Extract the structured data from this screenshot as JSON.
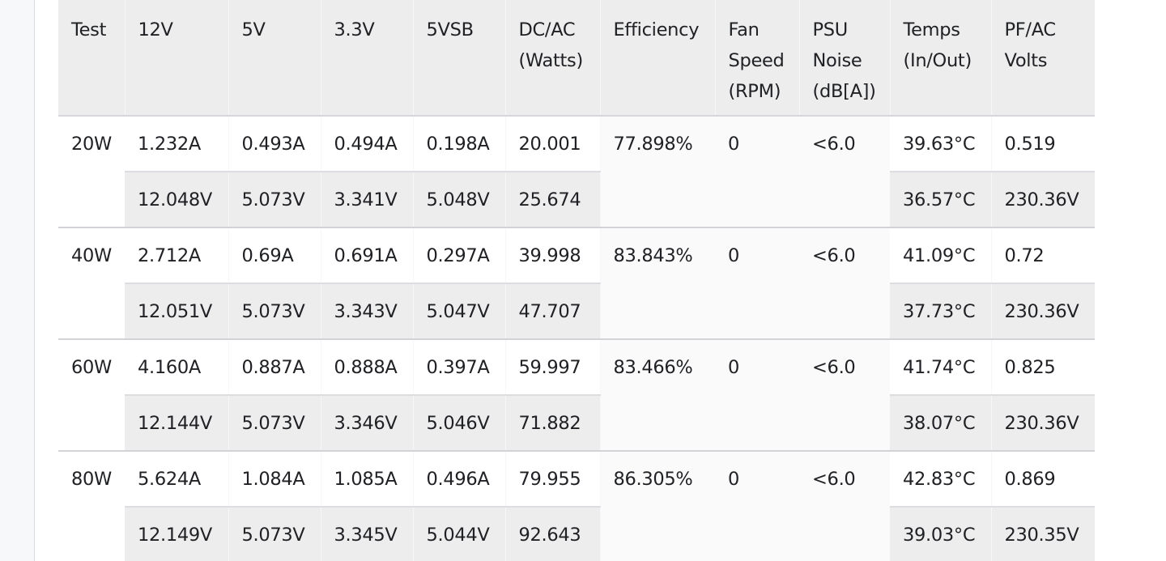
{
  "table": {
    "headers": [
      {
        "key": "test",
        "lines": [
          "Test"
        ]
      },
      {
        "key": "v12",
        "lines": [
          "12V"
        ]
      },
      {
        "key": "v5",
        "lines": [
          "5V"
        ]
      },
      {
        "key": "v33",
        "lines": [
          "3.3V"
        ]
      },
      {
        "key": "v5vsb",
        "lines": [
          "5VSB"
        ]
      },
      {
        "key": "dcac",
        "lines": [
          "DC/AC",
          "(Watts)"
        ]
      },
      {
        "key": "efficiency",
        "lines": [
          "Efficiency"
        ]
      },
      {
        "key": "fan",
        "lines": [
          "Fan",
          "Speed",
          "(RPM)"
        ]
      },
      {
        "key": "noise",
        "lines": [
          "PSU",
          "Noise",
          "(dB[A])"
        ]
      },
      {
        "key": "temps",
        "lines": [
          "Temps",
          "(In/Out)"
        ]
      },
      {
        "key": "pfac",
        "lines": [
          "PF/AC",
          "Volts"
        ]
      }
    ],
    "rows": [
      {
        "test": "20W",
        "amps": [
          "1.232A",
          "0.493A",
          "0.494A",
          "0.198A",
          "20.001"
        ],
        "volts": [
          "12.048V",
          "5.073V",
          "3.341V",
          "5.048V",
          "25.674"
        ],
        "efficiency": "77.898%",
        "fan": "0",
        "noise": "<6.0",
        "temp_in": "39.63°C",
        "temp_out": "36.57°C",
        "pf": "0.519",
        "ac_volts": "230.36V"
      },
      {
        "test": "40W",
        "amps": [
          "2.712A",
          "0.69A",
          "0.691A",
          "0.297A",
          "39.998"
        ],
        "volts": [
          "12.051V",
          "5.073V",
          "3.343V",
          "5.047V",
          "47.707"
        ],
        "efficiency": "83.843%",
        "fan": "0",
        "noise": "<6.0",
        "temp_in": "41.09°C",
        "temp_out": "37.73°C",
        "pf": "0.72",
        "ac_volts": "230.36V"
      },
      {
        "test": "60W",
        "amps": [
          "4.160A",
          "0.887A",
          "0.888A",
          "0.397A",
          "59.997"
        ],
        "volts": [
          "12.144V",
          "5.073V",
          "3.346V",
          "5.046V",
          "71.882"
        ],
        "efficiency": "83.466%",
        "fan": "0",
        "noise": "<6.0",
        "temp_in": "41.74°C",
        "temp_out": "38.07°C",
        "pf": "0.825",
        "ac_volts": "230.36V"
      },
      {
        "test": "80W",
        "amps": [
          "5.624A",
          "1.084A",
          "1.085A",
          "0.496A",
          "79.955"
        ],
        "volts": [
          "12.149V",
          "5.073V",
          "3.345V",
          "5.044V",
          "92.643"
        ],
        "efficiency": "86.305%",
        "fan": "0",
        "noise": "<6.0",
        "temp_in": "42.83°C",
        "temp_out": "39.03°C",
        "pf": "0.869",
        "ac_volts": "230.35V"
      }
    ]
  }
}
